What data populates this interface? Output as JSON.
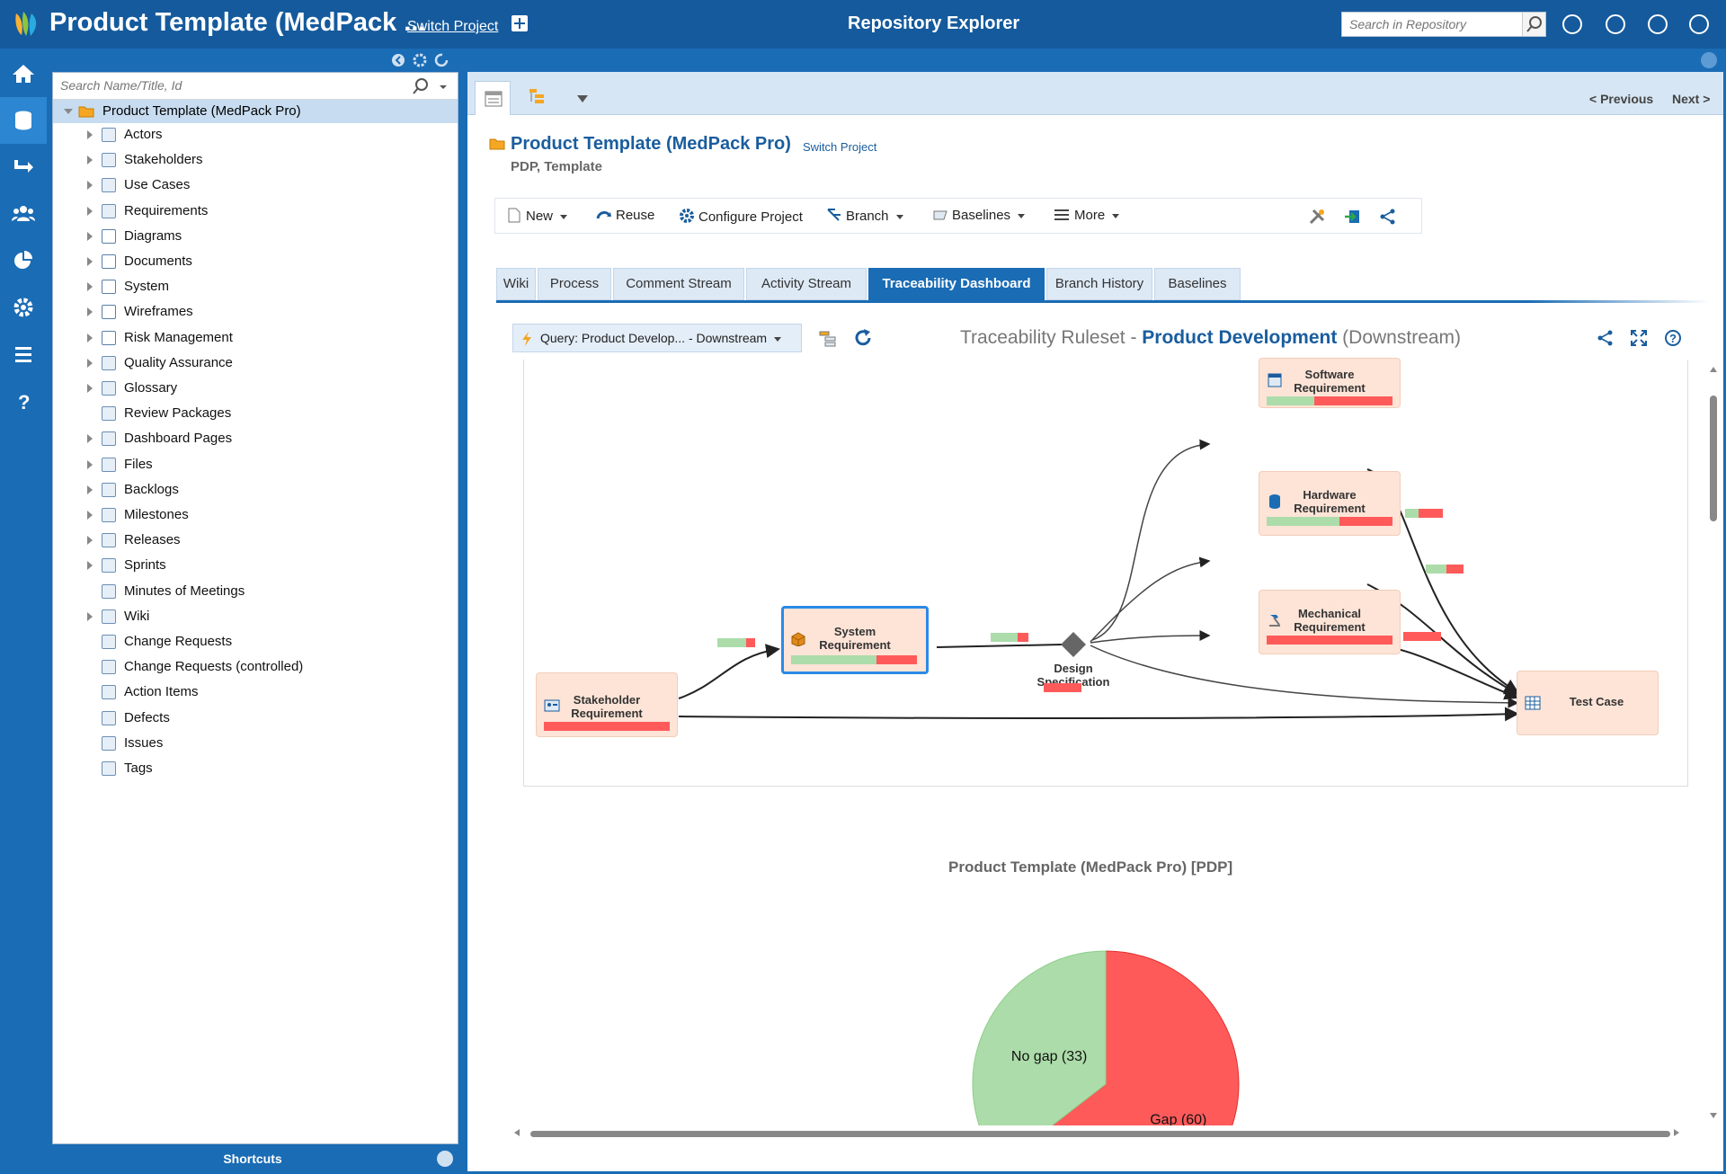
{
  "app": {
    "title": "Product Template (MedPack ...",
    "switch_project": "Switch Project",
    "repo_title": "Repository Explorer",
    "search_placeholder": "Search in Repository"
  },
  "tree": {
    "search_placeholder": "Search Name/Title, Id",
    "root": "Product Template (MedPack Pro)",
    "items": [
      {
        "label": "Actors",
        "icon": "actor-icon",
        "expandable": true
      },
      {
        "label": "Stakeholders",
        "icon": "stakeholder-icon",
        "expandable": true
      },
      {
        "label": "Use Cases",
        "icon": "use-case-icon",
        "expandable": true
      },
      {
        "label": "Requirements",
        "icon": "requirements-icon",
        "expandable": true
      },
      {
        "label": "Diagrams",
        "icon": "folder-icon",
        "expandable": true
      },
      {
        "label": "Documents",
        "icon": "folder-icon",
        "expandable": true
      },
      {
        "label": "System",
        "icon": "folder-icon",
        "expandable": true
      },
      {
        "label": "Wireframes",
        "icon": "folder-icon",
        "expandable": true
      },
      {
        "label": "Risk Management",
        "icon": "folder-icon",
        "expandable": true
      },
      {
        "label": "Quality Assurance",
        "icon": "check-icon",
        "expandable": true
      },
      {
        "label": "Glossary",
        "icon": "glossary-icon",
        "expandable": true
      },
      {
        "label": "Review Packages",
        "icon": "review-icon",
        "expandable": false
      },
      {
        "label": "Dashboard Pages",
        "icon": "dashboard-icon",
        "expandable": true
      },
      {
        "label": "Files",
        "icon": "files-icon",
        "expandable": true
      },
      {
        "label": "Backlogs",
        "icon": "backlog-icon",
        "expandable": true
      },
      {
        "label": "Milestones",
        "icon": "milestone-icon",
        "expandable": true
      },
      {
        "label": "Releases",
        "icon": "release-icon",
        "expandable": true
      },
      {
        "label": "Sprints",
        "icon": "sprint-icon",
        "expandable": true
      },
      {
        "label": "Minutes of Meetings",
        "icon": "meeting-icon",
        "expandable": false
      },
      {
        "label": "Wiki",
        "icon": "wiki-icon",
        "expandable": true
      },
      {
        "label": "Change Requests",
        "icon": "change-request-icon",
        "expandable": false
      },
      {
        "label": "Change Requests (controlled)",
        "icon": "change-request-icon",
        "expandable": false
      },
      {
        "label": "Action Items",
        "icon": "action-item-icon",
        "expandable": false
      },
      {
        "label": "Defects",
        "icon": "defect-icon",
        "expandable": false
      },
      {
        "label": "Issues",
        "icon": "issue-icon",
        "expandable": false
      },
      {
        "label": "Tags",
        "icon": "tag-icon",
        "expandable": false
      }
    ],
    "shortcuts": "Shortcuts"
  },
  "main": {
    "prev": "< Previous",
    "next": "Next >",
    "project_name": "Product Template (MedPack Pro)",
    "switch_project": "Switch Project",
    "subtitle": "PDP, Template",
    "commands": {
      "new": "New",
      "reuse": "Reuse",
      "configure": "Configure Project",
      "branch": "Branch",
      "baselines": "Baselines",
      "more": "More"
    },
    "tabs": [
      "Wiki",
      "Process",
      "Comment Stream",
      "Activity Stream",
      "Traceability Dashboard",
      "Branch History",
      "Baselines"
    ],
    "active_tab": "Traceability Dashboard",
    "query": "Query: Product Develop... - Downstream",
    "ruleset": {
      "prefix": "Traceability Ruleset - ",
      "name": "Product Development",
      "suffix": " (Downstream)"
    }
  },
  "diagram": {
    "nodes": {
      "software": {
        "label": "Software\nRequirement",
        "coverage": 0.38
      },
      "hardware": {
        "label": "Hardware\nRequirement",
        "coverage": 0.58
      },
      "mechanical": {
        "label": "Mechanical\nRequirement",
        "coverage": 0.0
      },
      "system": {
        "label": "System\nRequirement",
        "coverage": 0.68
      },
      "stakeholder": {
        "label": "Stakeholder\nRequirement",
        "coverage": 0.0
      },
      "design": {
        "label": "Design\nSpecification"
      },
      "testcase": {
        "label": "Test Case"
      }
    },
    "edge_coverage": {
      "stakeholder_system": 0.75,
      "system_design": 0.72,
      "software_test": 0.35,
      "hardware_test": 0.55,
      "mechanical_test": 0.0,
      "stakeholder_test": 0.0
    }
  },
  "chart_data": {
    "type": "pie",
    "title": "Product Template (MedPack Pro) [PDP]",
    "categories": [
      "No gap",
      "Gap"
    ],
    "values": [
      33,
      60
    ],
    "labels": [
      "No gap (33)",
      "Gap (60)"
    ],
    "colors": [
      "#acdcaa",
      "#ff5a5a"
    ]
  }
}
